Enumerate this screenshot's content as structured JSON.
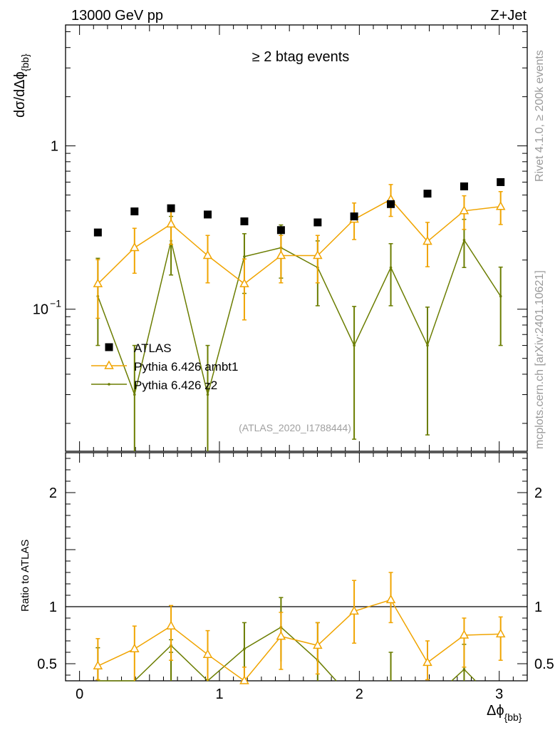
{
  "chart_data": {
    "type": "scatter",
    "header_left": "13000 GeV pp",
    "header_right": "Z+Jet",
    "title": "≥ 2 btag events",
    "analysis_label": "(ATLAS_2020_I1788444)",
    "side_label_1": "Rivet 4.1.0, ≥ 200k events",
    "side_label_2": "mcplots.cern.ch [arXiv:2401.10621]",
    "xlabel": "Δϕ_{bb}",
    "ylabel": "dσ/dΔϕ_{bb}",
    "ratio_ylabel": "Ratio to ATLAS",
    "xlim": [
      -0.1,
      3.2
    ],
    "ylim": [
      0.0135,
      5.5
    ],
    "ratio_ylim": [
      0.35,
      2.35
    ],
    "x_ticks": [
      "0",
      "1",
      "2",
      "3"
    ],
    "y_ticks": [
      "1",
      "10^{-1}"
    ],
    "ratio_ticks": [
      "0.5",
      "1",
      "2"
    ],
    "x": [
      0.131,
      0.393,
      0.654,
      0.916,
      1.178,
      1.44,
      1.702,
      1.963,
      2.225,
      2.487,
      2.749,
      3.01
    ],
    "series": [
      {
        "name": "ATLAS",
        "color": "#000000",
        "marker": "square",
        "values": [
          0.295,
          0.397,
          0.415,
          0.38,
          0.345,
          0.305,
          0.34,
          0.37,
          0.44,
          0.51,
          0.565,
          0.6
        ]
      },
      {
        "name": "Pythia 6.426 ambt1",
        "color": "#f0a400",
        "marker": "triangle",
        "values": [
          0.143,
          0.238,
          0.332,
          0.213,
          0.143,
          0.213,
          0.213,
          0.355,
          0.47,
          0.26,
          0.4,
          0.425
        ],
        "err_low": [
          0.055,
          0.072,
          0.083,
          0.068,
          0.057,
          0.068,
          0.068,
          0.088,
          0.1,
          0.078,
          0.092,
          0.095
        ],
        "err_high": [
          0.058,
          0.075,
          0.09,
          0.07,
          0.06,
          0.07,
          0.07,
          0.092,
          0.11,
          0.08,
          0.095,
          0.1
        ],
        "ratio": [
          0.48,
          0.63,
          0.83,
          0.58,
          0.35,
          0.74,
          0.66,
          0.96,
          1.06,
          0.51,
          0.75,
          0.76
        ],
        "ratio_err_low": [
          0.12,
          0.28,
          0.3,
          0.23,
          0.1,
          0.29,
          0.25,
          0.28,
          0.2,
          0.15,
          0.28,
          0.23
        ],
        "ratio_err_high": [
          0.24,
          0.2,
          0.18,
          0.21,
          0.12,
          0.21,
          0.2,
          0.27,
          0.24,
          0.19,
          0.15,
          0.15
        ]
      },
      {
        "name": "Pythia 6.426 z2",
        "color": "#6b7d00",
        "marker": "dot",
        "values": [
          0.12,
          0.03,
          0.262,
          0.03,
          0.21,
          0.238,
          0.18,
          0.06,
          0.18,
          0.06,
          0.265,
          0.12
        ],
        "err_low": [
          0.06,
          0.022,
          0.1,
          0.02,
          0.085,
          0.083,
          0.075,
          0.044,
          0.075,
          0.043,
          0.085,
          0.06
        ],
        "err_high": [
          0.085,
          0.03,
          0.108,
          0.03,
          0.08,
          0.09,
          0.082,
          0.044,
          0.072,
          0.043,
          0.09,
          0.061
        ],
        "ratio": [
          0.3,
          null,
          0.66,
          null,
          0.63,
          0.82,
          0.53,
          null,
          null,
          null,
          0.45,
          null
        ],
        "ratio_err_low": [
          0.3,
          null,
          0.3,
          null,
          0.25,
          0.3,
          0.2,
          null,
          null,
          null,
          0.1,
          null
        ],
        "ratio_err_high": [
          0.34,
          null,
          0.05,
          null,
          0.23,
          0.26,
          0.33,
          null,
          null,
          null,
          0.22,
          null
        ],
        "ratio_points_offscale": [
          0.131,
          0.654,
          2.225,
          2.749
        ]
      }
    ],
    "legend": "left, middle"
  }
}
